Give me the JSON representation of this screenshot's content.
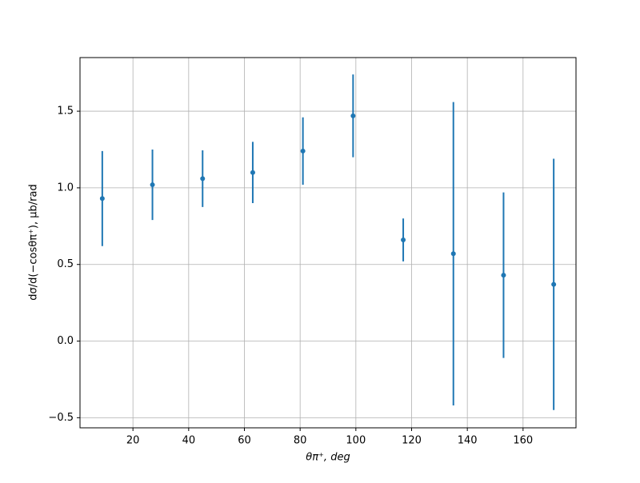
{
  "chart_data": {
    "type": "errorbar",
    "xlabel": "θπ⁺, deg",
    "ylabel": "dσ/d(−cosθπ⁺), μb/rad",
    "x": [
      9,
      27,
      45,
      63,
      81,
      99,
      117,
      135,
      153,
      171
    ],
    "values": [
      0.93,
      1.02,
      1.06,
      1.1,
      1.24,
      1.47,
      0.66,
      0.57,
      0.43,
      0.37
    ],
    "errors": [
      0.31,
      0.23,
      0.185,
      0.2,
      0.22,
      0.27,
      0.14,
      0.99,
      0.54,
      0.82
    ],
    "color": "#1f77b4",
    "xlim": [
      1,
      179
    ],
    "ylim": [
      -0.566,
      1.85
    ],
    "xticks": [
      20,
      40,
      60,
      80,
      100,
      120,
      140,
      160
    ],
    "yticks": [
      {
        "value": -0.5,
        "label": "−0.5"
      },
      {
        "value": 0,
        "label": "0.0"
      },
      0.5,
      {
        "value": 1,
        "label": "1.0"
      },
      1.5
    ],
    "grid": true
  }
}
